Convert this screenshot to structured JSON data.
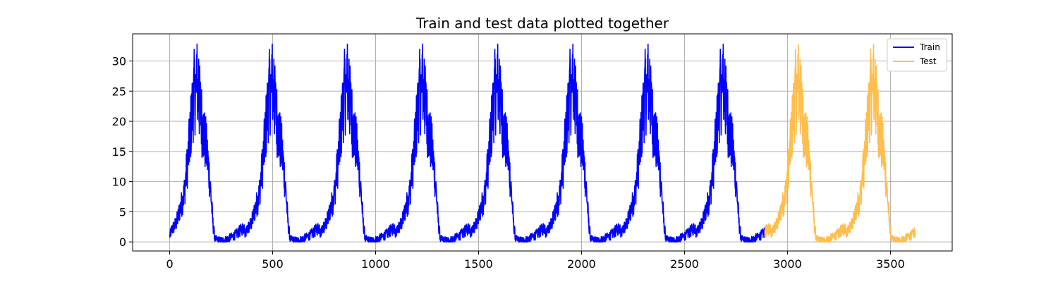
{
  "chart_data": {
    "type": "line",
    "title": "Train and test data plotted together",
    "xlabel": "",
    "ylabel": "",
    "xlim": [
      -180,
      3800
    ],
    "ylim": [
      -1.5,
      34.5
    ],
    "xticks": [
      0,
      500,
      1000,
      1500,
      2000,
      2500,
      3000,
      3500
    ],
    "xtick_labels": [
      "0",
      "500",
      "1000",
      "1500",
      "2000",
      "2500",
      "3000",
      "3500"
    ],
    "yticks": [
      0,
      5,
      10,
      15,
      20,
      25,
      30
    ],
    "ytick_labels": [
      "0",
      "5",
      "10",
      "15",
      "20",
      "25",
      "30"
    ],
    "grid": true,
    "legend_position": "top-right",
    "cycle_length": 365,
    "cycle_profile": {
      "day": [
        0,
        10,
        20,
        30,
        40,
        50,
        60,
        70,
        80,
        90,
        100,
        110,
        120,
        130,
        140,
        150,
        160,
        170,
        180,
        190,
        200,
        210,
        220,
        240,
        260,
        280,
        300,
        320,
        340,
        364
      ],
      "value": [
        1.0,
        2.0,
        2.5,
        3.0,
        4.0,
        5.5,
        6.5,
        8.0,
        11.0,
        14.0,
        18.0,
        22.0,
        25.0,
        25.0,
        24.0,
        22.0,
        19.0,
        17.0,
        15.0,
        12.0,
        8.0,
        3.0,
        0.5,
        0.3,
        0.3,
        0.5,
        0.8,
        1.2,
        1.8,
        2.5
      ]
    },
    "peak_value": 32.8,
    "series": [
      {
        "name": "Train",
        "color": "#0000ff",
        "x_range": [
          0,
          2890
        ]
      },
      {
        "name": "Test",
        "color": "#ffbe4d",
        "x_range": [
          2890,
          3620
        ]
      }
    ]
  }
}
